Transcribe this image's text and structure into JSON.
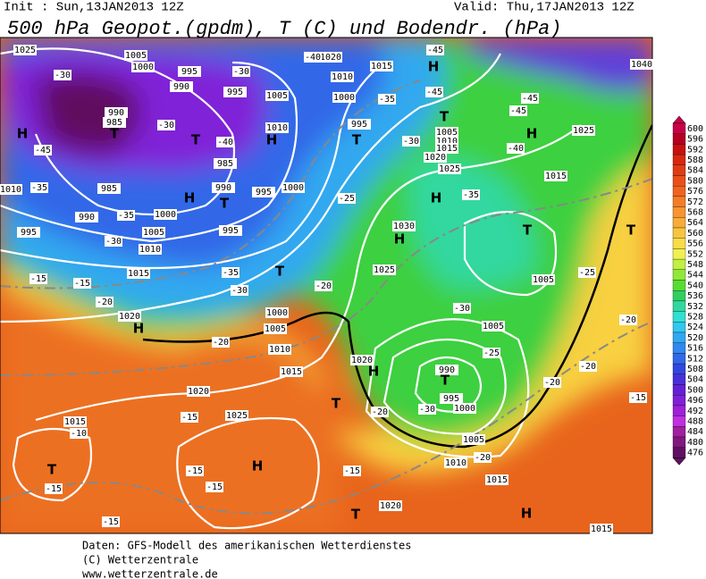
{
  "header": {
    "init": "Init : Sun,13JAN2013 12Z",
    "valid": "Valid: Thu,17JAN2013 12Z",
    "title": "500 hPa Geopot.(gpdm), T (C) und Bodendr. (hPa)"
  },
  "map": {
    "pressure_labels": [
      "1025",
      "1005",
      "1000",
      "995",
      "990",
      "990",
      "985",
      "995",
      "1005",
      "1010",
      "985",
      "990",
      "995",
      "1000",
      "985",
      "990",
      "995",
      "1000",
      "1005",
      "1010",
      "1015",
      "1020",
      "995",
      "1020",
      "1010",
      "1015",
      "1000",
      "995",
      "1005",
      "1010",
      "1015",
      "1020",
      "1025",
      "1030",
      "1025",
      "1015",
      "1025",
      "1040",
      "1010",
      "1000",
      "1005",
      "1010",
      "1015",
      "1020",
      "1020",
      "1025",
      "1015",
      "1005",
      "1005",
      "990",
      "995",
      "1000",
      "1005",
      "1010",
      "1015",
      "1020",
      "1015"
    ],
    "temperature_labels": [
      "-30",
      "-45",
      "-35",
      "-30",
      "-40",
      "-35",
      "-30",
      "-15",
      "-15",
      "-20",
      "-35",
      "-30",
      "-20",
      "-25",
      "-30",
      "-45",
      "-40",
      "-35",
      "-45",
      "-30",
      "-40",
      "-45",
      "-45",
      "-35",
      "-25",
      "-30",
      "-25",
      "-20",
      "-20",
      "-20",
      "-15",
      "-20",
      "-15",
      "-15",
      "-15",
      "-15",
      "-15",
      "-15",
      "-10",
      "-20",
      "-30",
      "-20"
    ],
    "centers": [
      "H",
      "T",
      "T",
      "H",
      "T",
      "T",
      "H",
      "H",
      "H",
      "T",
      "H",
      "H",
      "T",
      "T",
      "H",
      "T",
      "H",
      "T",
      "T",
      "H",
      "T",
      "T",
      "H"
    ]
  },
  "colorbar": {
    "ticks": [
      600,
      596,
      592,
      588,
      584,
      580,
      576,
      572,
      568,
      564,
      560,
      556,
      552,
      548,
      544,
      540,
      536,
      532,
      528,
      524,
      520,
      516,
      512,
      508,
      504,
      500,
      496,
      492,
      488,
      484,
      480,
      476
    ],
    "colors": [
      "#c80048",
      "#b40020",
      "#c81010",
      "#d82810",
      "#e03c14",
      "#e85018",
      "#f06420",
      "#f47c28",
      "#f89430",
      "#f8ac38",
      "#f8c440",
      "#f8dc48",
      "#f0f050",
      "#c0f040",
      "#90e838",
      "#58dc30",
      "#30d060",
      "#30d8a0",
      "#30e0d0",
      "#30c8f0",
      "#30a8f0",
      "#3088f0",
      "#3068e8",
      "#3048e0",
      "#4830d8",
      "#6420d8",
      "#8020d8",
      "#a020d8",
      "#c030e0",
      "#a020a0",
      "#801880",
      "#601060"
    ]
  },
  "footer": {
    "line1": "Daten: GFS-Modell des amerikanischen Wetterdienstes",
    "line2": "(C) Wetterzentrale",
    "line3": "www.wetterzentrale.de"
  }
}
